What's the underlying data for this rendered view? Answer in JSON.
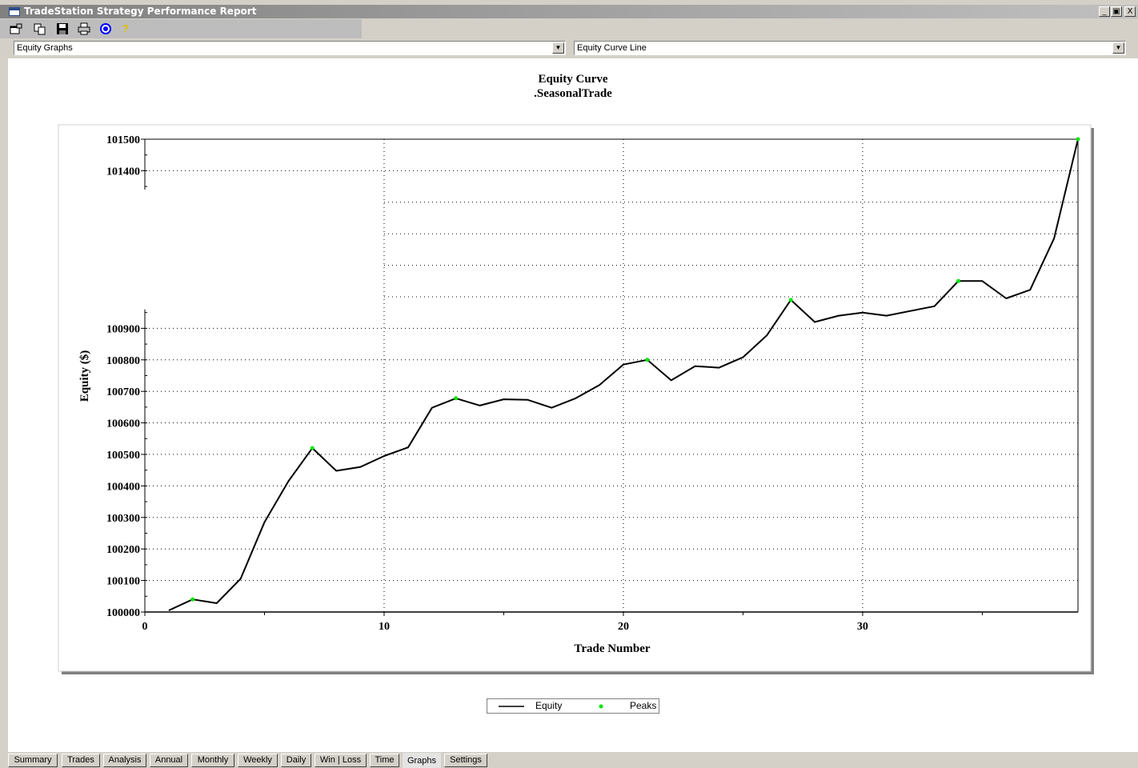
{
  "window": {
    "title": "TradeStation Strategy Performance Report",
    "controls": [
      "_",
      "▣",
      "X"
    ]
  },
  "toolbar": {
    "icons": [
      "properties-icon",
      "copy-icon",
      "save-icon",
      "print-icon",
      "target-icon",
      "help-icon"
    ]
  },
  "dropdowns": {
    "report_type": "Equity Graphs",
    "graph_type": "Equity Curve Line"
  },
  "chart_data": {
    "type": "line",
    "title": "Equity Curve",
    "subtitle": ".SeasonalTrade",
    "xlabel": "Trade Number",
    "ylabel": "Equity ($)",
    "xlim": [
      0,
      39
    ],
    "ylim": [
      100000,
      101500
    ],
    "x_ticks": [
      "0",
      "10",
      "20",
      "30"
    ],
    "y_ticks": [
      "100000",
      "100100",
      "100200",
      "100300",
      "100400",
      "100500",
      "100600",
      "100700",
      "100800",
      "100900",
      "101400",
      "101500"
    ],
    "grid": true,
    "legend_position": "bottom-center",
    "series": [
      {
        "name": "Equity",
        "color": "#000000",
        "x": [
          1,
          2,
          3,
          4,
          5,
          6,
          7,
          8,
          9,
          10,
          11,
          12,
          13,
          14,
          15,
          16,
          17,
          18,
          19,
          20,
          21,
          22,
          23,
          24,
          25,
          26,
          27,
          28,
          29,
          30,
          31,
          32,
          33,
          34,
          35,
          36,
          37,
          38,
          39
        ],
        "values": [
          100005,
          100040,
          100028,
          100105,
          100285,
          100415,
          100520,
          100448,
          100460,
          100495,
          100522,
          100648,
          100678,
          100655,
          100675,
          100673,
          100648,
          100678,
          100720,
          100785,
          100800,
          100735,
          100780,
          100775,
          100808,
          100878,
          100990,
          100920,
          100940,
          100950,
          100940,
          100955,
          100970,
          101050,
          101050,
          100995,
          101022,
          101185,
          101500
        ]
      },
      {
        "name": "Peaks",
        "color": "#00e600",
        "x": [
          2,
          7,
          13,
          21,
          27,
          34,
          39
        ],
        "values": [
          100040,
          100520,
          100678,
          100800,
          100990,
          101050,
          101500
        ]
      }
    ]
  },
  "legend": {
    "equity_label": "Equity",
    "peaks_label": "Peaks"
  },
  "tabs": [
    "Summary",
    "Trades",
    "Analysis",
    "Annual",
    "Monthly",
    "Weekly",
    "Daily",
    "Win | Loss",
    "Time",
    "Graphs",
    "Settings"
  ],
  "active_tab": "Graphs"
}
